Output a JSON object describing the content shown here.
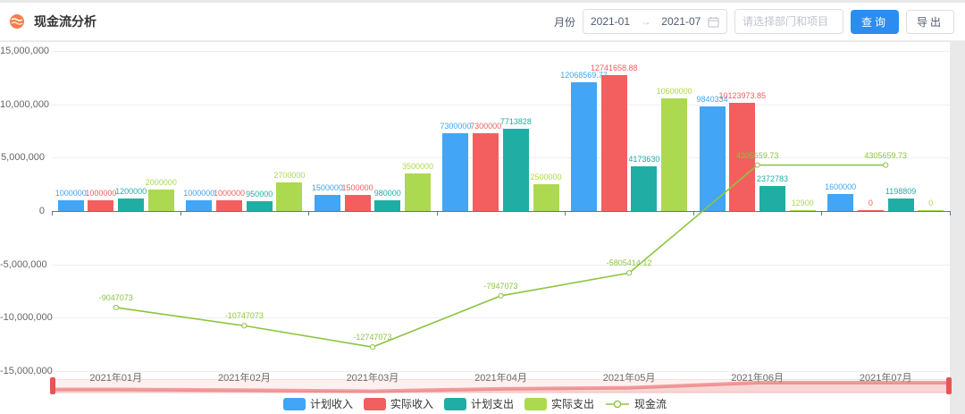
{
  "header": {
    "title": "现金流分析",
    "filters": {
      "month_label": "月份",
      "date_start": "2021-01",
      "date_separator": "→",
      "date_end": "2021-07",
      "project_placeholder": "请选择部门和项目",
      "query_label": "查询",
      "export_label": "导出"
    }
  },
  "colors": {
    "primary_button": "#2d8cf0",
    "header_icon": "#f0804d",
    "axis": "#5c7799",
    "datazoom_handle": "#e45656"
  },
  "chart_data": {
    "type": "bar",
    "categories": [
      "2021年01月",
      "2021年02月",
      "2021年03月",
      "2021年04月",
      "2021年05月",
      "2021年06月",
      "2021年07月"
    ],
    "series": [
      {
        "name": "计划收入",
        "type": "bar",
        "color": "#42a5f5",
        "values": [
          1000000,
          1000000,
          1500000,
          7300000,
          12068569.77,
          9840334,
          1600000
        ]
      },
      {
        "name": "实际收入",
        "type": "bar",
        "color": "#f35e5e",
        "values": [
          1000000,
          1000000,
          1500000,
          7300000,
          12741658.88,
          10123973.85,
          0
        ]
      },
      {
        "name": "计划支出",
        "type": "bar",
        "color": "#20aea4",
        "values": [
          1200000,
          950000,
          980000,
          7713828,
          4173630,
          2372783,
          1198809
        ]
      },
      {
        "name": "实际支出",
        "type": "bar",
        "color": "#acd94f",
        "values": [
          2000000,
          2700000,
          3500000,
          2500000,
          10600000,
          12900,
          0
        ]
      },
      {
        "name": "现金流",
        "type": "line",
        "color": "#8cc540",
        "values": [
          -9047073,
          -10747073,
          -12747073,
          -7947073,
          -5805414.12,
          4305659.73,
          4305659.73
        ]
      }
    ],
    "y_ticks": [
      {
        "value": 15000000,
        "label": "15,000,000"
      },
      {
        "value": 10000000,
        "label": "10,000,000"
      },
      {
        "value": 5000000,
        "label": "5,000,000"
      },
      {
        "value": 0,
        "label": "0"
      },
      {
        "value": -5000000,
        "label": "-5,000,000"
      },
      {
        "value": -10000000,
        "label": "-10,000,000"
      },
      {
        "value": -15000000,
        "label": "-15,000,000"
      }
    ],
    "ylim": [
      -15000000,
      15000000
    ],
    "grid": true,
    "legend_position": "bottom",
    "has_datazoom_slider": true
  }
}
